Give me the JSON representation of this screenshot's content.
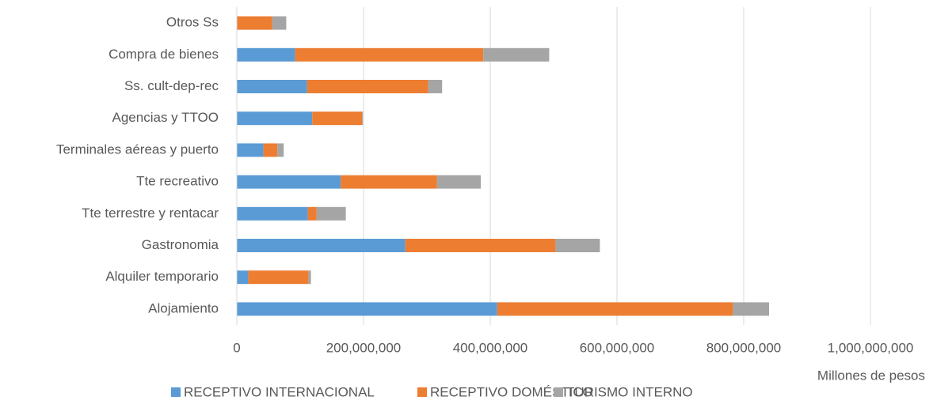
{
  "chart_data": {
    "type": "bar",
    "orientation": "horizontal",
    "stacked": true,
    "x_label": "Millones de pesos",
    "categories": [
      "Alojamiento",
      "Alquiler temporario",
      "Gastronomia",
      "Tte terrestre y rentacar",
      "Tte recreativo",
      "Terminales aéreas y puerto",
      "Agencias y TTOO",
      "Ss. cult-dep-rec",
      "Compra de bienes",
      "Otros Ss"
    ],
    "series": [
      {
        "name": "RECEPTIVO INTERNACIONAL",
        "color": "#5b9bd5",
        "values": [
          411000000,
          18000000,
          266000000,
          112000000,
          164000000,
          42000000,
          119000000,
          111000000,
          92000000,
          0
        ]
      },
      {
        "name": "RECEPTIVO DOMÉSTICO",
        "color": "#ed7d31",
        "values": [
          372000000,
          95000000,
          237000000,
          14000000,
          152000000,
          22000000,
          79000000,
          191000000,
          297000000,
          56000000
        ]
      },
      {
        "name": "TURISMO INTERNO",
        "color": "#a5a5a5",
        "values": [
          57000000,
          4000000,
          70000000,
          46000000,
          69000000,
          10000000,
          1000000,
          22000000,
          104000000,
          22000000
        ]
      }
    ],
    "xlim": [
      0,
      1000000000
    ],
    "xticks": [
      0,
      {
        "value": 200000000,
        "label": "200,000,000"
      },
      {
        "value": 400000000,
        "label": "400,000,000"
      },
      {
        "value": 600000000,
        "label": "600,000,000"
      },
      {
        "value": 800000000,
        "label": "800,000,000"
      },
      {
        "value": 1000000000,
        "label": "1,000,000,000"
      }
    ],
    "grid": true,
    "legend": "bottom"
  }
}
